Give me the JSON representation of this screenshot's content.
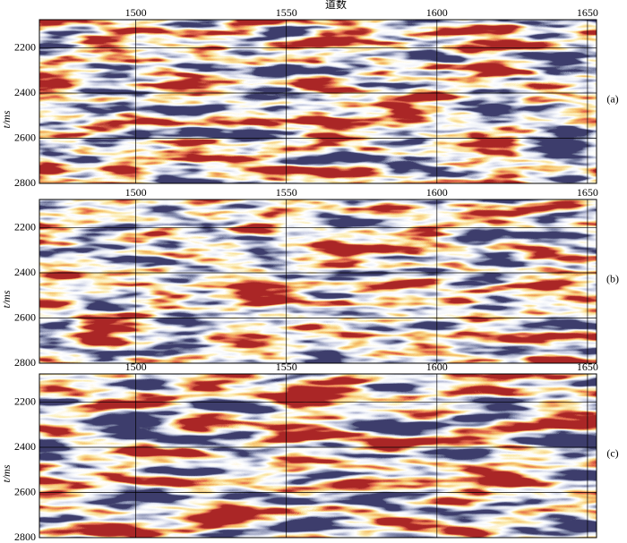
{
  "chart_data": [
    {
      "type": "image",
      "x_label": "道数",
      "y_label": "t/ms",
      "panel_label": "(a)",
      "xlim": [
        1468,
        1653
      ],
      "xticks": [
        1500,
        1550,
        1600,
        1650
      ],
      "ylim": [
        2075,
        2800
      ],
      "yticks": [
        2200,
        2400,
        2600,
        2800
      ],
      "y_inverted": true,
      "grid": true
    },
    {
      "type": "image",
      "y_label": "t/ms",
      "panel_label": "(b)",
      "xlim": [
        1468,
        1653
      ],
      "xticks": [
        1500,
        1550,
        1600,
        1650
      ],
      "ylim": [
        2075,
        2800
      ],
      "yticks": [
        2200,
        2400,
        2600,
        2800
      ],
      "y_inverted": true,
      "grid": true
    },
    {
      "type": "image",
      "y_label": "t/ms",
      "panel_label": "(c)",
      "xlim": [
        1468,
        1653
      ],
      "xticks": [
        1500,
        1550,
        1600,
        1650
      ],
      "ylim": [
        2075,
        2800
      ],
      "yticks": [
        2200,
        2400,
        2600,
        2800
      ],
      "y_inverted": true,
      "grid": true
    }
  ]
}
